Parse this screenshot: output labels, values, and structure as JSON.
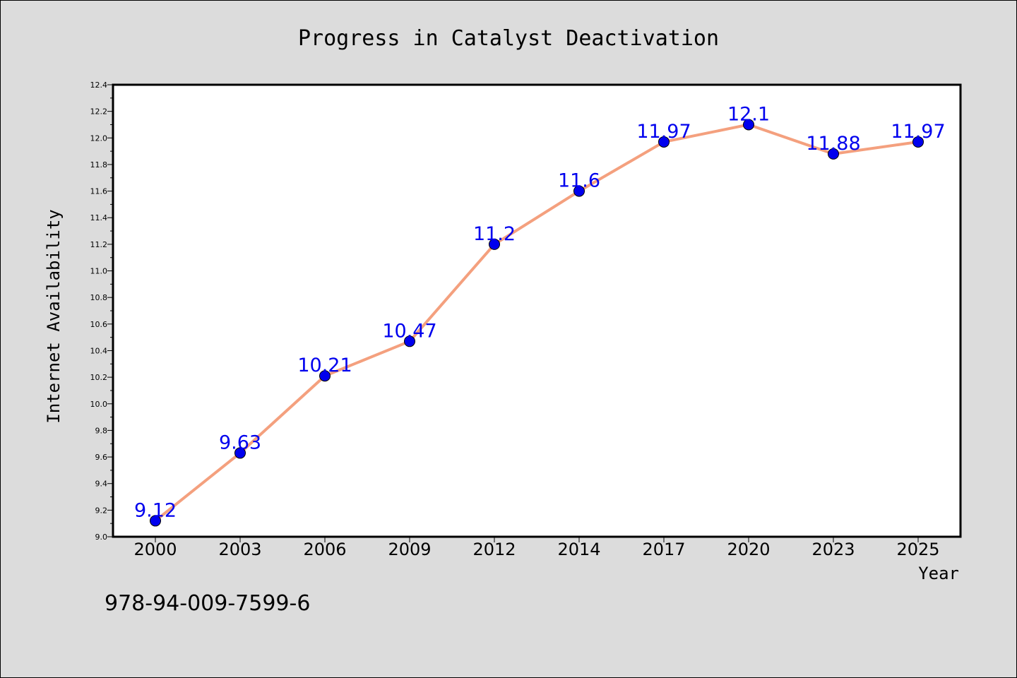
{
  "chart_data": {
    "type": "line",
    "title": "Progress in Catalyst Deactivation",
    "xlabel": "Year",
    "ylabel": "Internet Availability",
    "categories": [
      "2000",
      "2003",
      "2006",
      "2009",
      "2012",
      "2014",
      "2017",
      "2020",
      "2023",
      "2025"
    ],
    "series": [
      {
        "values": [
          9.12,
          9.63,
          10.21,
          10.47,
          11.2,
          11.6,
          11.97,
          12.1,
          11.88,
          11.97
        ],
        "data_labels": [
          "9.12",
          "9.63",
          "10.21",
          "10.47",
          "11.2",
          "11.6",
          "11.97",
          "12.1",
          "11.88",
          "11.97"
        ],
        "line_color": "#f4a07e",
        "marker_color": "#0000ee"
      }
    ],
    "ylim": [
      9.0,
      12.4
    ],
    "yticks": [
      "9.0",
      "9.2",
      "9.4",
      "9.6",
      "9.8",
      "10.0",
      "10.2",
      "10.4",
      "10.6",
      "10.8",
      "11.0",
      "11.2",
      "11.4",
      "11.6",
      "11.8",
      "12.0",
      "12.2",
      "12.4"
    ],
    "grid": false,
    "legend": "none"
  },
  "footer": {
    "isbn": "978-94-009-7599-6"
  }
}
